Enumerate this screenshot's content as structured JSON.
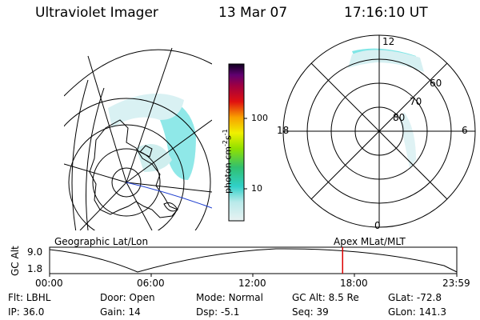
{
  "header": {
    "title": "Ultraviolet Imager",
    "date": "13 Mar 07",
    "time": "17:16:10 UT"
  },
  "colors": {
    "accent_red": "#dd0000",
    "cyan": "#6ee6e6",
    "light_cyan": "#cfeff2"
  },
  "colorbar": {
    "label": "photon cm",
    "exp1": "-2",
    "mid": "s",
    "exp2": "-1",
    "ticks": [
      "100",
      "10"
    ]
  },
  "polar": {
    "lat_labels": [
      "60",
      "70",
      "80"
    ],
    "mlt_labels": {
      "top": "12",
      "left": "18",
      "right": "6",
      "bottom": "0"
    }
  },
  "timeline": {
    "left_title": "Geographic Lat/Lon",
    "right_title": "Apex MLat/MLT",
    "axis_name": "GC Alt",
    "y_ticks": [
      "9.0",
      "1.8"
    ],
    "x_ticks": [
      "00:00",
      "06:00",
      "12:00",
      "18:00",
      "23:59"
    ],
    "marker_time_hours": 17.27
  },
  "status": {
    "row1": [
      {
        "k": "Flt:",
        "v": "LBHL"
      },
      {
        "k": "Door:",
        "v": "Open"
      },
      {
        "k": "Mode:",
        "v": "Normal"
      },
      {
        "k": "GC Alt:",
        "v": "8.5 Re"
      },
      {
        "k": "GLat:",
        "v": "-72.8"
      }
    ],
    "row2": [
      {
        "k": "IP:",
        "v": "36.0"
      },
      {
        "k": "Gain:",
        "v": "14"
      },
      {
        "k": "Dsp:",
        "v": "-5.1"
      },
      {
        "k": "Seq:",
        "v": "39"
      },
      {
        "k": "GLon:",
        "v": "141.3"
      }
    ]
  }
}
